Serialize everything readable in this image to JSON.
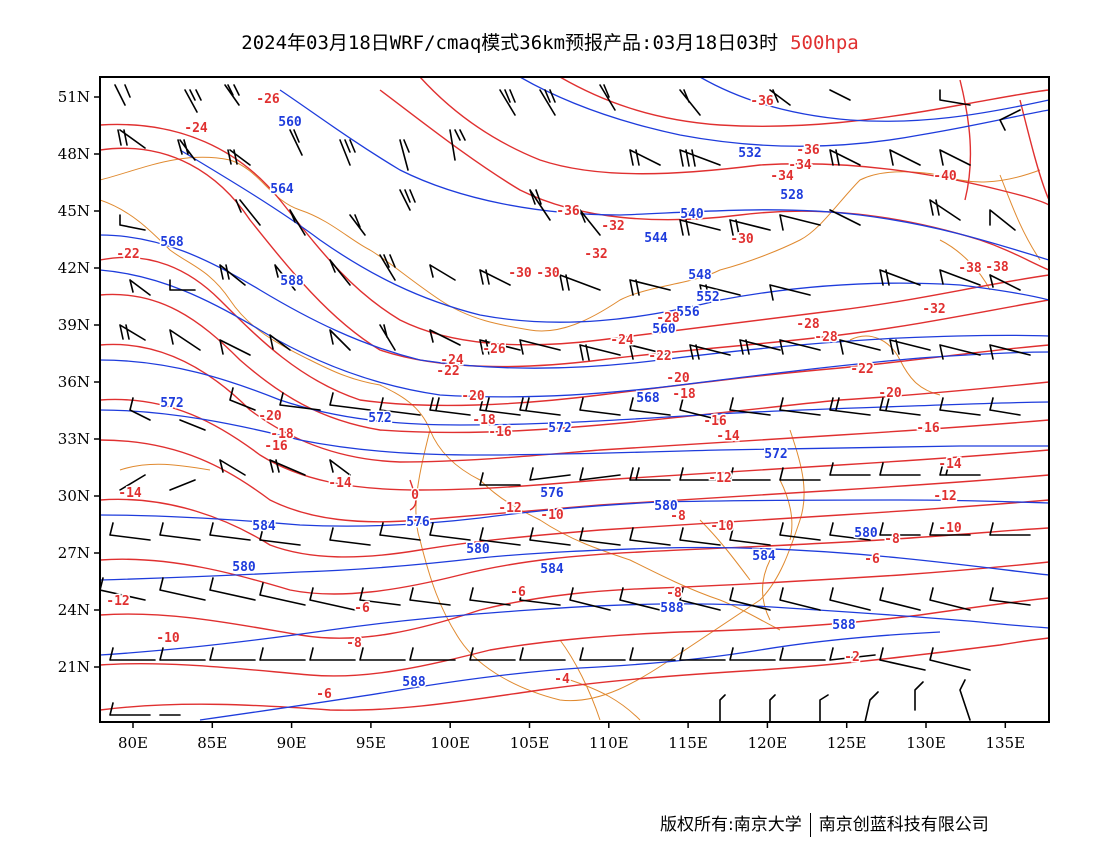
{
  "title": {
    "main": "2024年03月18日WRF/cmaq模式36km预报产品:03月18日03时",
    "level": "500hpa"
  },
  "footer": {
    "copyright": "版权所有:南京大学",
    "company": "南京创蓝科技有限公司"
  },
  "colors": {
    "temperature": "#e03030",
    "geopotential": "#1e3cdc",
    "border": "#e08a30",
    "wind": "#000000"
  },
  "axes": {
    "lon": [
      "80E",
      "85E",
      "90E",
      "95E",
      "100E",
      "105E",
      "110E",
      "115E",
      "120E",
      "125E",
      "130E",
      "135E"
    ],
    "lat": [
      "51N",
      "48N",
      "45N",
      "42N",
      "39N",
      "36N",
      "33N",
      "30N",
      "27N",
      "24N",
      "21N"
    ]
  },
  "height_labels": [
    "560",
    "564",
    "568",
    "588",
    "572",
    "572",
    "572",
    "576",
    "576",
    "580",
    "580",
    "580",
    "584",
    "584",
    "588",
    "588",
    "588",
    "540",
    "544",
    "532",
    "528",
    "548",
    "552",
    "556",
    "560",
    "568",
    "572",
    "580",
    "584"
  ],
  "temp_labels": [
    "-24",
    "-26",
    "-22",
    "-20",
    "-18",
    "-16",
    "-14",
    "-12",
    "-10",
    "-8",
    "-6",
    "-4",
    "-2",
    "-28",
    "-30",
    "-32",
    "-34",
    "-36",
    "-38",
    "-40",
    "-16",
    "-14",
    "-12",
    "-10",
    "-8",
    "-6",
    "-20",
    "-22",
    "-24",
    "-26",
    "-28",
    "-30",
    "-32",
    "-34",
    "-36",
    "-18",
    "-20",
    "-22",
    "-16",
    "-14",
    "-12",
    "-10",
    "-8",
    "-6",
    "-10",
    "-12",
    "-14",
    "-16",
    "-18",
    "-8",
    "-6",
    "-24",
    "-22",
    "-20",
    "0",
    "-36",
    "-38",
    "-32",
    "-28",
    "-30"
  ]
}
